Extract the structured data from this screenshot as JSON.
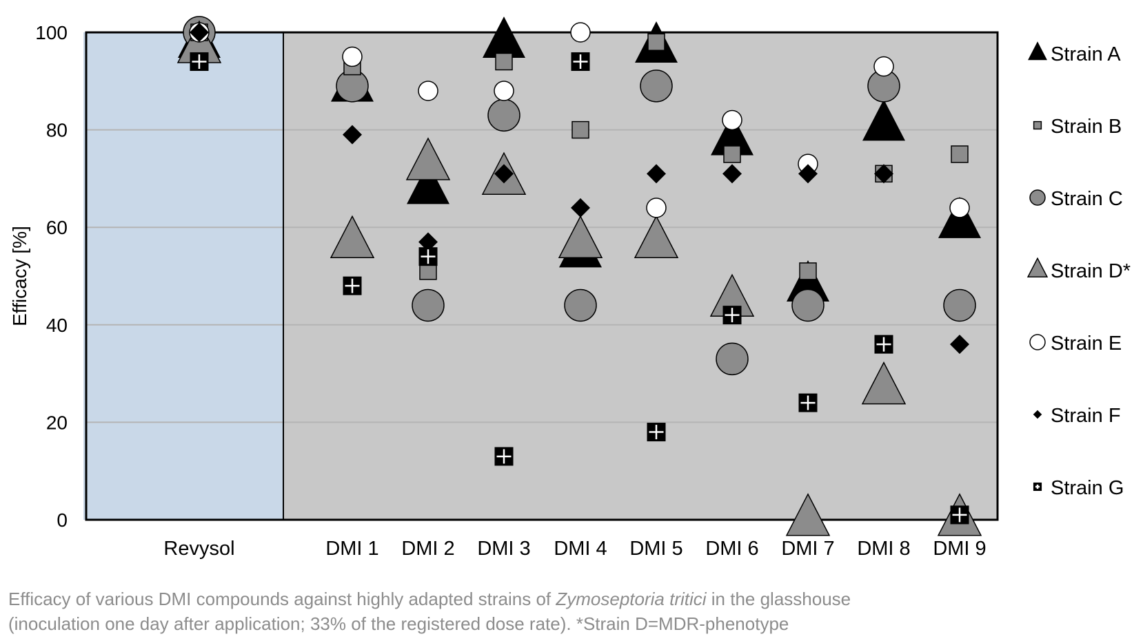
{
  "caption": {
    "line1_before": "Efficacy of various DMI compounds against highly adapted strains of ",
    "line1_italic": "Zymoseptoria tritici",
    "line1_after": " in the glasshouse",
    "line2": "(inoculation one day after application; 33% of the registered dose rate). *Strain D=MDR-phenotype"
  },
  "colors": {
    "reference_region": "#c9d8e8",
    "dmi_region": "#c8c8c8",
    "gridline": "#b4b4b4",
    "marker_black": "#000000",
    "marker_gray": "#8c8c8c",
    "marker_white": "#ffffff"
  },
  "chart_data": {
    "type": "scatter",
    "title": "",
    "xlabel": "",
    "ylabel": "Efficacy [%]",
    "ylim": [
      0,
      100
    ],
    "yticks": [
      0,
      20,
      40,
      60,
      80,
      100
    ],
    "grid": true,
    "legend_position": "right",
    "categories": [
      "Revysol",
      "DMI 1",
      "DMI 2",
      "DMI 3",
      "DMI 4",
      "DMI 5",
      "DMI 6",
      "DMI 7",
      "DMI 8",
      "DMI 9"
    ],
    "series": [
      {
        "name": "Strain A",
        "marker": "triangle",
        "color": "#000000",
        "values": [
          98,
          89,
          68,
          98,
          55,
          97,
          78,
          48,
          81,
          61
        ]
      },
      {
        "name": "Strain B",
        "marker": "square",
        "color": "#8c8c8c",
        "values": [
          100,
          93,
          51,
          94,
          80,
          98,
          75,
          51,
          71,
          75
        ]
      },
      {
        "name": "Strain C",
        "marker": "circle",
        "color": "#8c8c8c",
        "values": [
          100,
          89,
          44,
          83,
          44,
          89,
          33,
          44,
          89,
          44
        ]
      },
      {
        "name": "Strain D*",
        "marker": "triangle",
        "color": "#8c8c8c",
        "values": [
          97,
          57,
          73,
          70,
          57,
          57,
          45,
          0,
          27,
          0
        ]
      },
      {
        "name": "Strain E",
        "marker": "circle",
        "color": "#ffffff",
        "values": [
          100,
          95,
          88,
          88,
          100,
          64,
          82,
          73,
          93,
          64
        ]
      },
      {
        "name": "Strain F",
        "marker": "diamond",
        "color": "#000000",
        "values": [
          100,
          79,
          57,
          71,
          64,
          71,
          71,
          71,
          71,
          36
        ]
      },
      {
        "name": "Strain G",
        "marker": "cross-square",
        "color": "#000000",
        "values": [
          94,
          48,
          54,
          13,
          94,
          18,
          42,
          24,
          36,
          1
        ]
      }
    ]
  }
}
